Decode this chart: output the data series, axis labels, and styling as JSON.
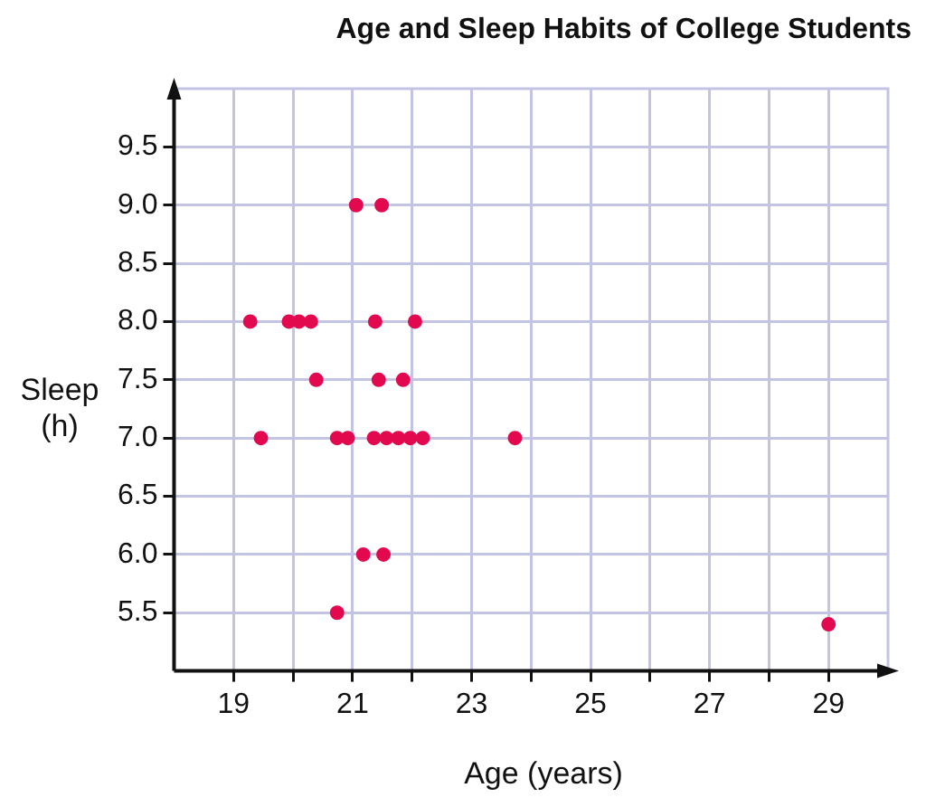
{
  "chart_data": {
    "type": "scatter",
    "title": "Age and Sleep Habits of College Students",
    "xlabel": "Age (years)",
    "ylabel": "Sleep\n(h)",
    "x": [
      21.06,
      21.49,
      19.28,
      19.93,
      20.1,
      20.3,
      21.38,
      22.05,
      20.39,
      21.44,
      21.85,
      19.46,
      20.74,
      20.92,
      21.36,
      21.57,
      21.77,
      21.97,
      22.18,
      23.73,
      21.18,
      21.52,
      20.74,
      29
    ],
    "series": [
      {
        "color": "#e3094f",
        "values": [
          9,
          9,
          8,
          8,
          8,
          8,
          8,
          8,
          7.5,
          7.5,
          7.5,
          7,
          7,
          7,
          7,
          7,
          7,
          7,
          7,
          7,
          6,
          6,
          5.5,
          5.4
        ]
      }
    ],
    "xlim": [
      18,
      30
    ],
    "ylim": [
      5,
      10
    ],
    "xticks": [
      19,
      {
        "value": 20,
        "label": null
      },
      21,
      {
        "value": 22,
        "label": null
      },
      23,
      {
        "value": 24,
        "label": null
      },
      25,
      {
        "value": 26,
        "label": null
      },
      27,
      {
        "value": 28,
        "label": null
      },
      29
    ],
    "yticks": [
      5.5,
      {
        "value": 6,
        "label": "6.0"
      },
      6.5,
      {
        "value": 7,
        "label": "7.0"
      },
      7.5,
      {
        "value": 8,
        "label": "8.0"
      },
      8.5,
      {
        "value": 9,
        "label": "9.0"
      },
      9.5
    ],
    "grid": true,
    "marker": "circle",
    "legend": false
  }
}
